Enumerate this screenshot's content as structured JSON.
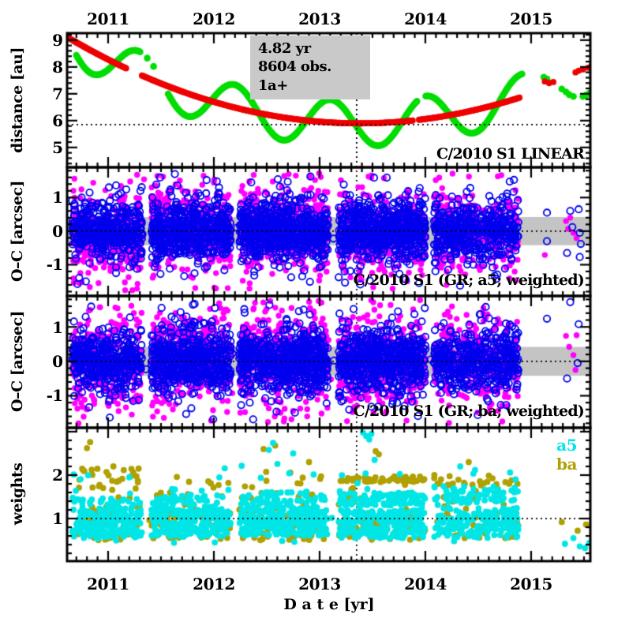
{
  "chart_data": {
    "type": "scatter",
    "description": "Four stacked time panels: distance curves, two O-C residual scatter panels, observation weights",
    "x": {
      "label": "D a t e [yr]",
      "range": [
        2010.612,
        2015.56
      ],
      "major_ticks": [
        2011,
        2012,
        2013,
        2014,
        2015
      ],
      "tick_labels": [
        "2011",
        "2012",
        "2013",
        "2014",
        "2015"
      ],
      "minor_step": 0.1
    },
    "vline_t": 2013.35,
    "colors": {
      "red": "#ee0000",
      "green": "#00dd00",
      "magenta": "#ff00ff",
      "blue": "#0000ee",
      "cyan": "#00e6e6",
      "olive": "#b0a000",
      "band_gray": "#c4c4c4",
      "box_gray": "#c9c9c9",
      "frame": "#000000"
    },
    "residual_seasons": [
      {
        "t0": 2010.66,
        "t1": 2011.32,
        "blue": 420,
        "mag": 300
      },
      {
        "t0": 2011.41,
        "t1": 2012.16,
        "blue": 540,
        "mag": 380
      },
      {
        "t0": 2012.24,
        "t1": 2013.08,
        "blue": 620,
        "mag": 430
      },
      {
        "t0": 2013.18,
        "t1": 2014.0,
        "blue": 620,
        "mag": 400
      },
      {
        "t0": 2014.08,
        "t1": 2014.88,
        "blue": 430,
        "mag": 280
      }
    ],
    "panels": [
      {
        "name": "distance",
        "ylabel": "distance [au]",
        "yrange": [
          4.26,
          9.26
        ],
        "major_yticks": [
          5,
          6,
          7,
          8,
          9
        ],
        "ytick_labels": [
          "5",
          "6",
          "7",
          "8",
          "9"
        ],
        "dotted_hline": 5.85,
        "annotation": "C/2010 S1 LINEAR",
        "info_box": [
          "4.82 yr",
          "8604 obs.",
          "1a+"
        ],
        "series": [
          {
            "name": "geocentric-distance",
            "color_key": "green",
            "model": {
              "kind": "quadratic_plus_cos",
              "q": 5.9,
              "c": 0.42,
              "tp": 2013.38,
              "amp": 0.85,
              "t0": 2010.84,
              "period": 0.905
            },
            "domain": [
              2010.7,
              2014.92
            ],
            "step": 0.014,
            "gaps": [
              [
                2011.31,
                2011.56
              ],
              [
                2013.93,
                2013.99
              ]
            ],
            "extra": [
              [
                2011.37,
                8.33
              ],
              [
                2011.43,
                8.02
              ]
            ],
            "trailing": [
              [
                2015.12,
                7.62
              ],
              [
                2015.15,
                7.55
              ],
              [
                2015.29,
                7.18
              ],
              [
                2015.33,
                7.07
              ],
              [
                2015.36,
                6.97
              ],
              [
                2015.4,
                6.9
              ],
              [
                2015.49,
                6.9
              ],
              [
                2015.52,
                6.95
              ],
              [
                2015.55,
                7.02
              ],
              [
                2015.58,
                7.08
              ]
            ]
          },
          {
            "name": "heliocentric-distance",
            "color_key": "red",
            "model": {
              "kind": "quadratic",
              "q": 5.9,
              "c": 0.42,
              "tp": 2013.38
            },
            "domain": [
              2010.62,
              2014.89
            ],
            "step": 0.01,
            "gaps": [
              [
                2011.17,
                2011.31
              ],
              [
                2013.88,
                2013.93
              ]
            ],
            "extra": [],
            "trailing": [
              [
                2015.13,
                7.46
              ],
              [
                2015.17,
                7.4
              ],
              [
                2015.21,
                7.44
              ],
              [
                2015.42,
                7.8
              ],
              [
                2015.45,
                7.86
              ],
              [
                2015.49,
                7.91
              ],
              [
                2015.54,
                7.97
              ],
              [
                2015.57,
                8.03
              ]
            ]
          }
        ]
      },
      {
        "name": "oc-a5",
        "ylabel": "O–C [arcsec]",
        "yrange": [
          -1.93,
          1.9
        ],
        "major_yticks": [
          -1,
          0,
          1
        ],
        "ytick_labels": [
          "-1",
          "0",
          "1"
        ],
        "dotted_hline": 0,
        "gray_band": [
          -0.42,
          0.42
        ],
        "annotation": "C/2010 S1 (GR; a5; weighted)",
        "seed": 12345,
        "sigma": {
          "blue": 0.42,
          "mag": 0.58
        },
        "tails": {
          "blue": 0.05,
          "mag": 0.1
        },
        "mag_skews": [
          -0.2,
          0.1,
          0.08,
          -0.05,
          0.0
        ],
        "stragglers": {
          "blue": 35,
          "mag": 28
        },
        "sparse_blue": [
          [
            2015.15,
            0.55
          ],
          [
            2015.37,
            0.6
          ],
          [
            2015.45,
            0.65
          ],
          [
            2015.39,
            0.12
          ],
          [
            2015.46,
            -0.05
          ],
          [
            2015.47,
            -0.38
          ],
          [
            2015.15,
            -0.3
          ],
          [
            2015.34,
            -0.65
          ],
          [
            2015.46,
            -0.77
          ]
        ],
        "sparse_mag": [
          [
            2015.33,
            0.3
          ],
          [
            2015.37,
            0.4
          ],
          [
            2015.35,
            0.07
          ],
          [
            2015.43,
            -0.21
          ],
          [
            2015.13,
            -0.71
          ],
          [
            2015.4,
            -0.05
          ]
        ]
      },
      {
        "name": "oc-ba",
        "ylabel": "O–C [arcsec]",
        "yrange": [
          -1.93,
          1.9
        ],
        "major_yticks": [
          -1,
          0,
          1
        ],
        "ytick_labels": [
          "-1",
          "0",
          "1"
        ],
        "dotted_hline": 0,
        "gray_band": [
          -0.42,
          0.42
        ],
        "annotation": "C/2010 S1 (GR; ba; weighted)",
        "seed": 67890,
        "sigma": {
          "blue": 0.44,
          "mag": 0.63
        },
        "tails": {
          "blue": 0.05,
          "mag": 0.11
        },
        "mag_skews": [
          -0.2,
          0.18,
          0.12,
          -0.05,
          0.0
        ],
        "stragglers": {
          "blue": 35,
          "mag": 28
        },
        "sparse_blue": [
          [
            2015.37,
            1.72
          ],
          [
            2015.15,
            1.24
          ],
          [
            2015.45,
            1.08
          ],
          [
            2015.44,
            -0.05
          ],
          [
            2015.34,
            -0.5
          ]
        ],
        "sparse_mag": [
          [
            2015.33,
            0.74
          ],
          [
            2015.43,
            0.76
          ],
          [
            2015.36,
            0.42
          ],
          [
            2015.4,
            0.18
          ],
          [
            2015.42,
            -0.25
          ]
        ]
      },
      {
        "name": "weights",
        "ylabel": "weights",
        "yrange": [
          0.02,
          3.09
        ],
        "major_yticks": [
          1,
          2,
          3
        ],
        "ytick_labels": [
          "1",
          "2"
        ],
        "dotted_hline": 1,
        "seed": 24680,
        "legend": [
          {
            "label": "a5",
            "color_key": "cyan"
          },
          {
            "label": "ba",
            "color_key": "olive"
          }
        ],
        "cyan_seasons": [
          {
            "t0": 2010.66,
            "t1": 2011.32,
            "bands": [
              [
                0.55,
                1.18,
                170
              ],
              [
                1.18,
                1.5,
                40
              ],
              [
                0.4,
                2.05,
                16
              ]
            ]
          },
          {
            "t0": 2011.41,
            "t1": 2012.16,
            "bands": [
              [
                0.58,
                1.2,
                210
              ],
              [
                1.2,
                1.55,
                50
              ],
              [
                0.4,
                2.2,
                18
              ]
            ]
          },
          {
            "t0": 2012.24,
            "t1": 2013.08,
            "bands": [
              [
                0.6,
                1.25,
                250
              ],
              [
                1.25,
                1.62,
                60
              ],
              [
                0.4,
                2.3,
                20
              ]
            ]
          },
          {
            "t0": 2013.18,
            "t1": 2014.0,
            "bands": [
              [
                0.55,
                1.2,
                230
              ],
              [
                1.3,
                1.6,
                110
              ],
              [
                0.4,
                2.2,
                18
              ]
            ]
          },
          {
            "t0": 2014.08,
            "t1": 2014.88,
            "bands": [
              [
                0.55,
                1.25,
                170
              ],
              [
                1.35,
                1.75,
                70
              ],
              [
                0.4,
                2.2,
                14
              ]
            ]
          }
        ],
        "olive_seasons": [
          {
            "t0": 2010.7,
            "t1": 2011.3,
            "bands": [
              [
                0.5,
                1.3,
                52
              ],
              [
                1.4,
                2.2,
                30
              ]
            ]
          },
          {
            "t0": 2011.41,
            "t1": 2012.16,
            "bands": [
              [
                0.5,
                1.2,
                62
              ],
              [
                1.3,
                2.0,
                18
              ]
            ]
          },
          {
            "t0": 2012.24,
            "t1": 2013.08,
            "bands": [
              [
                0.5,
                1.25,
                72
              ],
              [
                1.3,
                2.1,
                20
              ]
            ]
          },
          {
            "t0": 2013.18,
            "t1": 2014.0,
            "bands": [
              [
                0.5,
                1.1,
                52
              ],
              [
                1.84,
                1.97,
                48
              ],
              [
                1.2,
                1.8,
                12
              ]
            ]
          },
          {
            "t0": 2014.08,
            "t1": 2014.88,
            "bands": [
              [
                0.55,
                1.15,
                48
              ],
              [
                1.76,
                2.0,
                24
              ],
              [
                1.2,
                1.7,
                10
              ]
            ]
          }
        ],
        "cyan_extra": [
          [
            2012.52,
            2.58
          ],
          [
            2012.56,
            2.74
          ],
          [
            2013.41,
            2.98
          ],
          [
            2013.44,
            2.9
          ],
          [
            2013.47,
            2.82
          ],
          [
            2013.49,
            2.95
          ],
          [
            2013.52,
            2.35
          ],
          [
            2014.33,
            2.2
          ],
          [
            2014.47,
            2.12
          ],
          [
            2011.2,
            1.95
          ],
          [
            2012.75,
            2.5
          ]
        ],
        "olive_extra": [
          [
            2010.8,
            2.62
          ],
          [
            2010.83,
            2.76
          ],
          [
            2012.47,
            2.6
          ],
          [
            2012.58,
            2.68
          ],
          [
            2013.53,
            2.55
          ],
          [
            2013.56,
            2.48
          ],
          [
            2014.41,
            2.3
          ],
          [
            2012.9,
            2.3
          ],
          [
            2011.05,
            2.2
          ]
        ],
        "cyan_sparse": [
          [
            2015.32,
            0.42
          ],
          [
            2015.4,
            0.55
          ],
          [
            2015.46,
            0.36
          ],
          [
            2015.51,
            0.32
          ],
          [
            2015.55,
            0.44
          ],
          [
            2015.59,
            0.38
          ],
          [
            2015.61,
            0.3
          ]
        ],
        "olive_sparse": [
          [
            2015.29,
            0.92
          ],
          [
            2015.44,
            0.72
          ],
          [
            2015.52,
            0.86
          ],
          [
            2015.58,
            0.6
          ],
          [
            2015.62,
            0.46
          ]
        ],
        "stragglers": {
          "cyan": 20,
          "olive": 14
        }
      }
    ]
  }
}
